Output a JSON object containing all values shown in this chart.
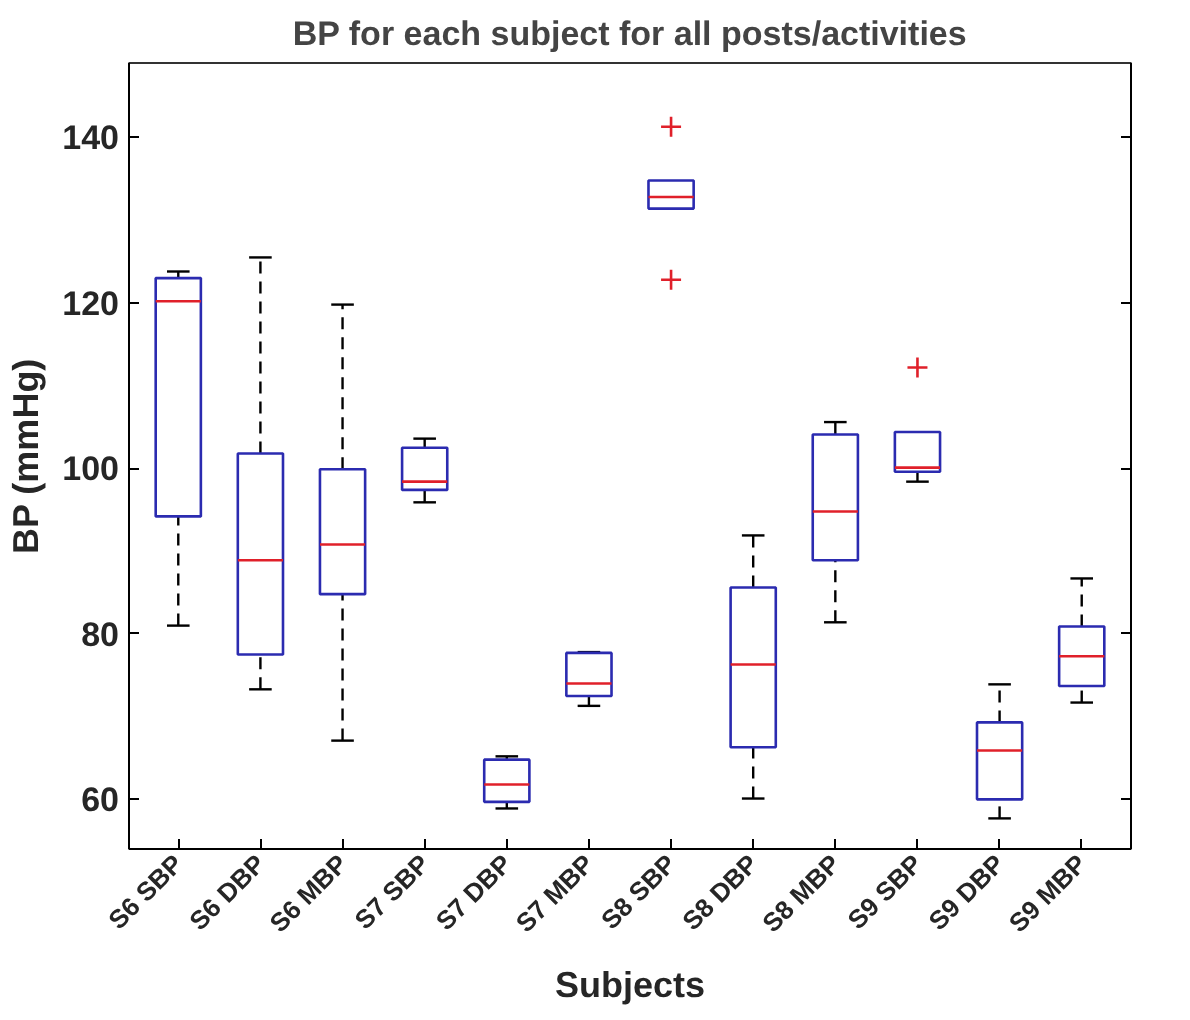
{
  "chart_data": {
    "type": "box",
    "title": "BP for each subject for all posts/activities",
    "xlabel": "Subjects",
    "ylabel": "BP (mmHg)",
    "categories": [
      "S6 SBP",
      "S6 DBP",
      "S6 MBP",
      "S7 SBP",
      "S7 DBP",
      "S7 MBP",
      "S8 SBP",
      "S8 DBP",
      "S8 MBP",
      "S9 SBP",
      "S9 DBP",
      "S9 MBP"
    ],
    "ylim": [
      54,
      149
    ],
    "yticks": [
      60,
      80,
      100,
      120,
      140
    ],
    "grid": false,
    "series": [
      {
        "color": "#2b2bb0",
        "boxes": [
          {
            "low": 81.0,
            "q1": 94.2,
            "median": 120.2,
            "q3": 123.0,
            "high": 123.8
          },
          {
            "low": 73.3,
            "q1": 77.5,
            "median": 88.9,
            "q3": 101.8,
            "high": 125.5
          },
          {
            "low": 67.1,
            "q1": 84.8,
            "median": 90.8,
            "q3": 99.9,
            "high": 119.8
          },
          {
            "low": 95.9,
            "q1": 97.4,
            "median": 98.4,
            "q3": 102.5,
            "high": 103.6
          },
          {
            "low": 58.9,
            "q1": 59.7,
            "median": 61.8,
            "q3": 64.8,
            "high": 65.2
          },
          {
            "low": 71.3,
            "q1": 72.5,
            "median": 74.0,
            "q3": 77.7,
            "high": 77.8
          },
          {
            "low": 131.4,
            "q1": 131.4,
            "median": 132.8,
            "q3": 134.8,
            "high": 134.8,
            "outliers": [
              141.3,
              122.8
            ]
          },
          {
            "low": 60.1,
            "q1": 66.3,
            "median": 76.3,
            "q3": 85.6,
            "high": 91.9
          },
          {
            "low": 81.4,
            "q1": 88.9,
            "median": 94.8,
            "q3": 104.1,
            "high": 105.6
          },
          {
            "low": 98.4,
            "q1": 99.6,
            "median": 100.1,
            "q3": 104.4,
            "high": 104.4,
            "outliers": [
              112.2
            ]
          },
          {
            "low": 57.7,
            "q1": 60.0,
            "median": 65.9,
            "q3": 69.3,
            "high": 73.9
          },
          {
            "low": 71.7,
            "q1": 73.7,
            "median": 77.3,
            "q3": 80.9,
            "high": 86.7
          }
        ]
      }
    ]
  }
}
